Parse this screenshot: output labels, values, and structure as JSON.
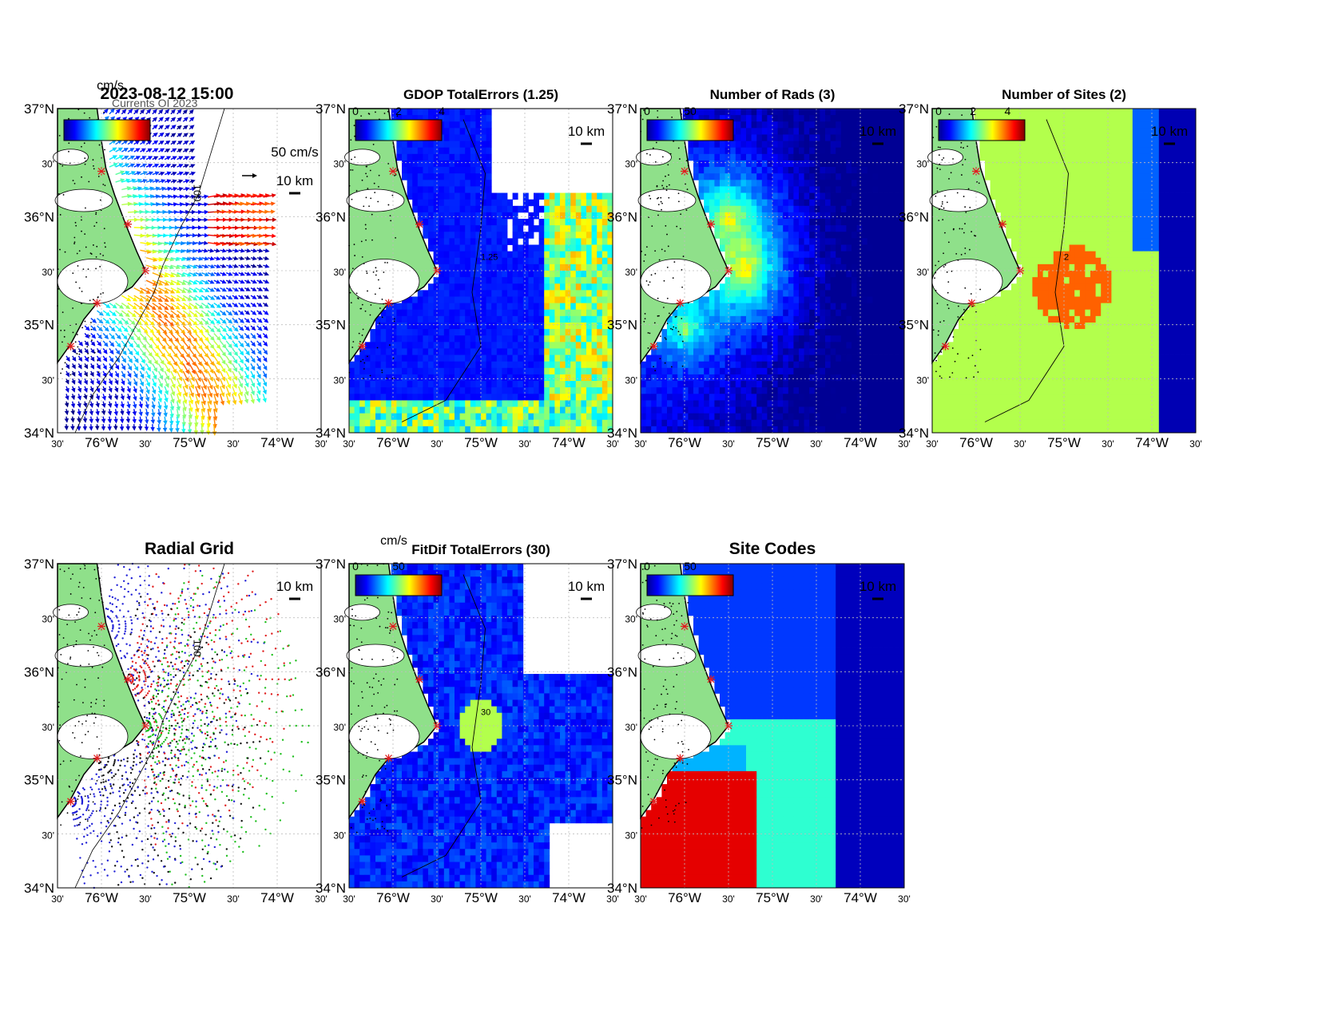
{
  "colors": {
    "land": "#8fe08a",
    "coast": "#000000",
    "site": "#e02020",
    "grid": "#bdbdbd",
    "ocean": "#ffffff"
  },
  "axes": {
    "lat_ticks": [
      {
        "value": 37.0,
        "label": "37°N"
      },
      {
        "value": 36.5,
        "label": "30'"
      },
      {
        "value": 36.0,
        "label": "36°N"
      },
      {
        "value": 35.5,
        "label": "30'"
      },
      {
        "value": 35.0,
        "label": "35°N"
      },
      {
        "value": 34.5,
        "label": "30'"
      },
      {
        "value": 34.0,
        "label": "34°N"
      }
    ],
    "lon_ticks": [
      {
        "value": -76.5,
        "label": "30'"
      },
      {
        "value": -76.0,
        "label": "76°W"
      },
      {
        "value": -75.5,
        "label": "30'"
      },
      {
        "value": -75.0,
        "label": "75°W"
      },
      {
        "value": -74.5,
        "label": "30'"
      },
      {
        "value": -74.0,
        "label": "74°W"
      },
      {
        "value": -73.5,
        "label": "30'"
      }
    ],
    "lon_range": [
      -76.5,
      -73.5
    ],
    "lat_range": [
      34.0,
      37.0
    ],
    "isobath_label": "100"
  },
  "scale_label": "10 km",
  "sites": [
    {
      "lon": -76.0,
      "lat": 36.42
    },
    {
      "lon": -75.7,
      "lat": 35.93
    },
    {
      "lon": -75.5,
      "lat": 35.5
    },
    {
      "lon": -76.05,
      "lat": 35.2
    },
    {
      "lon": -76.35,
      "lat": 34.8
    }
  ],
  "chart_data": [
    {
      "type": "scatter",
      "panel": "surface-currents",
      "title": "2023-08-12 15:00",
      "overlap_label": "Currents OI 2023",
      "colorbar_unit": "cm/s",
      "colormap": "jet",
      "vector_scale_label": "50 cm/s",
      "description_of_data": "vector field of surface currents, max approx 100 cm/s",
      "grid": true
    },
    {
      "type": "heatmap",
      "panel": "gdop",
      "title": "GDOP TotalErrors (1.25)",
      "colorbar_ticks": [
        "0",
        "2",
        "4"
      ],
      "colorbar_range": [
        0,
        4
      ],
      "contour_level": 1.25,
      "contour_label": "1.25",
      "colormap": "jet",
      "grid": true
    },
    {
      "type": "heatmap",
      "panel": "num-rads",
      "title": "Number of Rads (3)",
      "colorbar_ticks": [
        "0",
        "50"
      ],
      "colorbar_range": [
        0,
        100
      ],
      "contour_level": 3,
      "colormap": "jet",
      "grid": true
    },
    {
      "type": "heatmap",
      "panel": "num-sites",
      "title": "Number of Sites (2)",
      "colorbar_ticks": [
        "0",
        "2",
        "4"
      ],
      "colorbar_range": [
        0,
        5
      ],
      "contour_level": 2,
      "contour_label": "2",
      "colormap": "jet",
      "grid": true
    },
    {
      "type": "scatter",
      "panel": "radial-grid",
      "title": "Radial Grid",
      "series_colors": [
        "#1f1fd6",
        "#e01f1f",
        "#1fbf1f",
        "#111111"
      ],
      "grid": true
    },
    {
      "type": "heatmap",
      "panel": "fitdif",
      "title": "FitDif TotalErrors (30)",
      "colorbar_unit": "cm/s",
      "colorbar_ticks": [
        "0",
        "50"
      ],
      "colorbar_range": [
        0,
        100
      ],
      "contour_level": 30,
      "contour_label": "30",
      "colormap": "jet",
      "grid": true
    },
    {
      "type": "heatmap",
      "panel": "site-codes",
      "title": "Site Codes",
      "colorbar_ticks": [
        "0",
        "50"
      ],
      "colorbar_range": [
        0,
        100
      ],
      "colormap": "jet",
      "grid": true
    }
  ]
}
